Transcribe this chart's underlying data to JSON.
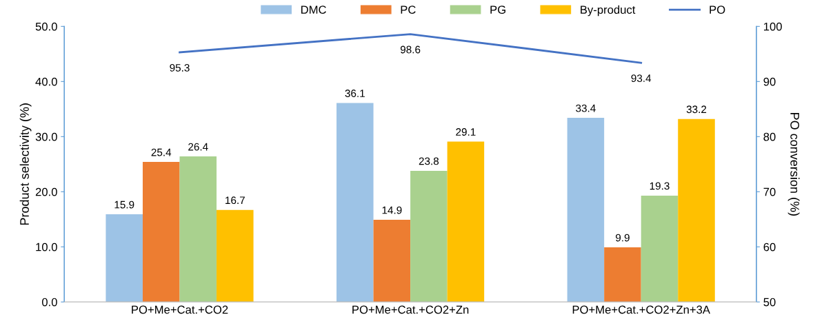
{
  "chart_data": {
    "type": "bar",
    "ylabel": "Product selectivity (%)",
    "y2label": "PO conversion (%)",
    "categories": [
      "PO+Me+Cat.+CO2",
      "PO+Me+Cat.+CO2+Zn",
      "PO+Me+Cat.+CO2+Zn+3A"
    ],
    "series": [
      {
        "name": "DMC",
        "color": "#9dc3e6",
        "values": [
          15.9,
          36.1,
          33.4
        ]
      },
      {
        "name": "PC",
        "color": "#ed7d31",
        "values": [
          25.4,
          14.9,
          9.9
        ]
      },
      {
        "name": "PG",
        "color": "#a9d18e",
        "values": [
          26.4,
          23.8,
          19.3
        ]
      },
      {
        "name": "By-product",
        "color": "#ffc000",
        "values": [
          16.7,
          29.1,
          33.2
        ]
      },
      {
        "name": "PO",
        "color": "#4472c4",
        "type": "line",
        "axis": "y2",
        "values": [
          95.3,
          98.6,
          93.4
        ]
      }
    ],
    "ylim": [
      0,
      50
    ],
    "yticks": [
      {
        "value": 0,
        "label": "0.0"
      },
      {
        "value": 10,
        "label": "10.0"
      },
      {
        "value": 20,
        "label": "20.0"
      },
      {
        "value": 30,
        "label": "30.0"
      },
      {
        "value": 40,
        "label": "40.0"
      },
      {
        "value": 50,
        "label": "50.0"
      }
    ],
    "y2lim": [
      50,
      100
    ],
    "y2ticks": [
      50,
      60,
      70,
      80,
      90,
      100
    ],
    "data_labels": true,
    "legend": "top",
    "grid": false,
    "marker": "none",
    "line_style": "solid"
  }
}
